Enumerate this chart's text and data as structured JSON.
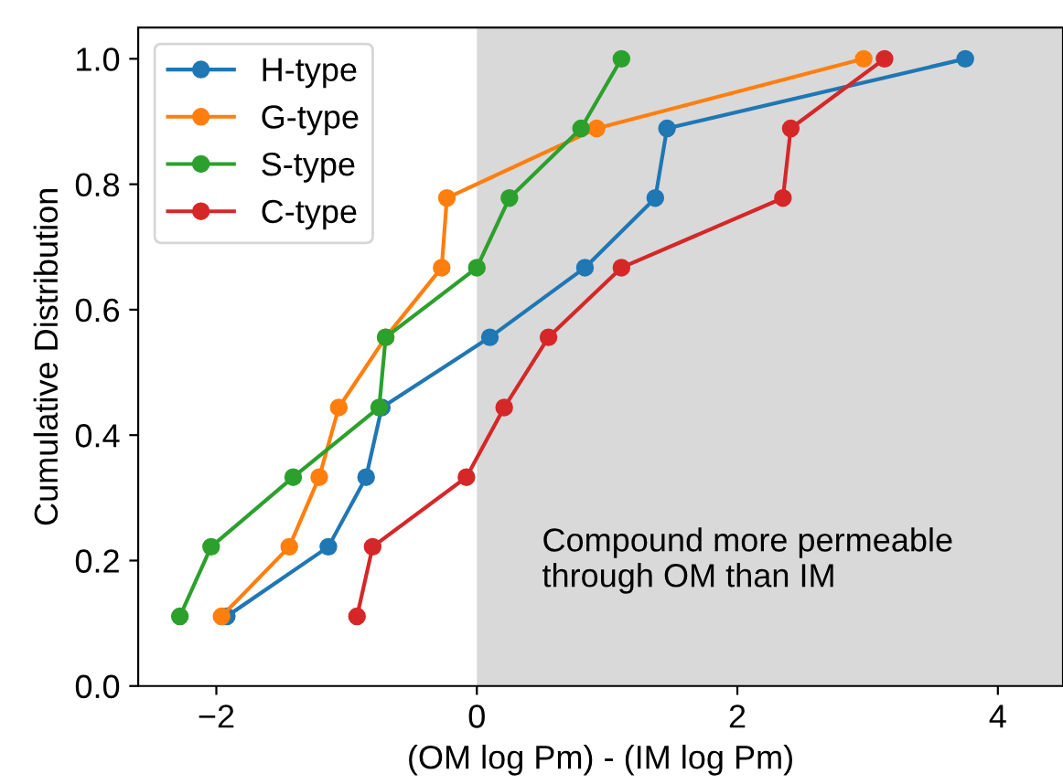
{
  "chart_data": {
    "type": "line",
    "xlabel": "(OM log Pm) - (IM log Pm)",
    "ylabel": "Cumulative Distribution",
    "series": [
      {
        "name": "H-type",
        "color": "#1f77b4",
        "x": [
          -1.92,
          -1.14,
          -0.85,
          -0.73,
          0.1,
          0.83,
          1.37,
          1.46,
          3.75
        ],
        "values": [
          0.111,
          0.222,
          0.333,
          0.444,
          0.556,
          0.667,
          0.778,
          0.889,
          1.0
        ]
      },
      {
        "name": "G-type",
        "color": "#ff7f0e",
        "x": [
          -1.96,
          -1.44,
          -1.21,
          -1.06,
          -0.7,
          -0.27,
          -0.23,
          0.92,
          2.97
        ],
        "values": [
          0.111,
          0.222,
          0.333,
          0.444,
          0.556,
          0.667,
          0.778,
          0.889,
          1.0
        ]
      },
      {
        "name": "S-type",
        "color": "#2ca02c",
        "x": [
          -2.28,
          -2.04,
          -1.41,
          -0.75,
          -0.7,
          0.0,
          0.25,
          0.8,
          1.11
        ],
        "values": [
          0.111,
          0.222,
          0.333,
          0.444,
          0.556,
          0.667,
          0.778,
          0.889,
          1.0
        ]
      },
      {
        "name": "C-type",
        "color": "#d62728",
        "x": [
          -0.92,
          -0.8,
          -0.08,
          0.21,
          0.55,
          1.11,
          2.35,
          2.41,
          3.13
        ],
        "values": [
          0.111,
          0.222,
          0.333,
          0.444,
          0.556,
          0.667,
          0.778,
          0.889,
          1.0
        ]
      }
    ],
    "bands": [
      {
        "axis": "x",
        "from": 0,
        "to": 4.5,
        "label": "Compound more permeable\nthrough OM than IM",
        "color": "#d9d9d9"
      }
    ],
    "xlim": [
      -2.6,
      4.5
    ],
    "ylim": [
      0,
      1.05
    ],
    "xticks": [
      {
        "value": -2,
        "label": "−2"
      },
      0,
      2,
      4
    ],
    "yticks": [
      {
        "value": 0,
        "label": "0.0"
      },
      {
        "value": 0.2,
        "label": "0.2"
      },
      {
        "value": 0.4,
        "label": "0.4"
      },
      {
        "value": 0.6,
        "label": "0.6"
      },
      {
        "value": 0.8,
        "label": "0.8"
      },
      {
        "value": 1.0,
        "label": "1.0"
      }
    ],
    "grid": false,
    "legend": "top left",
    "marker": "circle",
    "line_style": "solid"
  }
}
